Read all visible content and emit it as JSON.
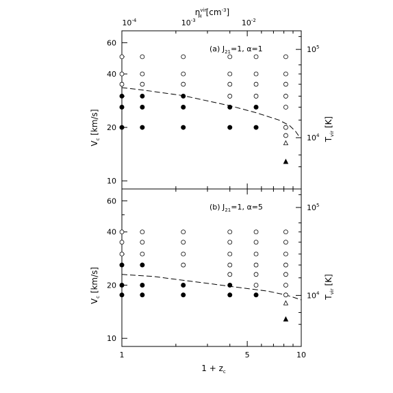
{
  "chart_data": [
    {
      "type": "scatter",
      "panel": "a",
      "annotation": {
        "main": "(a) J",
        "sub": "21",
        "rest": "=1, α=1"
      },
      "x_log": true,
      "y_log": true,
      "xlim": [
        1,
        10
      ],
      "ylim": [
        9,
        70
      ],
      "ylabel": {
        "main": "V",
        "sub": "c",
        "rest": " [km/s]"
      },
      "yticks": [
        10,
        20,
        40,
        60
      ],
      "yticklabels": [
        "10",
        "20",
        "40",
        "60"
      ],
      "right_label": {
        "main": "T",
        "sub": "vir",
        "rest": " [K]"
      },
      "right_ticks": [
        {
          "text": "10",
          "sup": "4",
          "vc": 17.5
        },
        {
          "text": "10",
          "sup": "5",
          "vc": 55
        }
      ],
      "top_label": {
        "main": "n",
        "sup": "vir",
        "sub": "H",
        "rest": "[cm",
        "sup2": "-3",
        "rest2": "]"
      },
      "top_ticks": [
        {
          "text": "10",
          "sup": "-4",
          "z1": 1.1
        },
        {
          "text": "10",
          "sup": "-3",
          "z1": 2.35
        },
        {
          "text": "10",
          "sup": "-2",
          "z1": 5.1
        }
      ],
      "series": [
        {
          "marker": "open-circle",
          "points": [
            [
              1,
              50
            ],
            [
              1.3,
              50
            ],
            [
              2.2,
              50
            ],
            [
              4,
              50
            ],
            [
              5.6,
              50
            ],
            [
              8.2,
              50
            ],
            [
              1,
              40
            ],
            [
              1.3,
              40
            ],
            [
              2.2,
              40
            ],
            [
              4,
              40
            ],
            [
              5.6,
              40
            ],
            [
              8.2,
              40
            ],
            [
              1,
              35
            ],
            [
              1.3,
              35
            ],
            [
              2.2,
              35
            ],
            [
              4,
              35
            ],
            [
              5.6,
              35
            ],
            [
              8.2,
              35
            ],
            [
              4,
              30
            ],
            [
              5.6,
              30
            ],
            [
              8.2,
              30
            ],
            [
              8.2,
              26
            ],
            [
              8.2,
              20
            ],
            [
              8.2,
              18
            ]
          ]
        },
        {
          "marker": "filled-circle",
          "points": [
            [
              1,
              30
            ],
            [
              1.3,
              30
            ],
            [
              2.2,
              30
            ],
            [
              1,
              26
            ],
            [
              1.3,
              26
            ],
            [
              2.2,
              26
            ],
            [
              4,
              26
            ],
            [
              5.6,
              26
            ],
            [
              1,
              20
            ],
            [
              1.3,
              20
            ],
            [
              2.2,
              20
            ],
            [
              4,
              20
            ],
            [
              5.6,
              20
            ]
          ]
        },
        {
          "marker": "open-triangle",
          "points": [
            [
              8.2,
              16.3
            ]
          ]
        },
        {
          "marker": "filled-triangle",
          "points": [
            [
              8.2,
              12.8
            ]
          ]
        }
      ],
      "line": {
        "style": "dashed",
        "points": [
          [
            1,
            33.5
          ],
          [
            1.3,
            32.5
          ],
          [
            2.2,
            30.2
          ],
          [
            4,
            26.5
          ],
          [
            5.6,
            24.2
          ],
          [
            7.5,
            22
          ],
          [
            8.6,
            20.5
          ],
          [
            9.3,
            19
          ],
          [
            9.8,
            17.6
          ]
        ]
      }
    },
    {
      "type": "scatter",
      "panel": "b",
      "annotation": {
        "main": "(b) J",
        "sub": "21",
        "rest": "=1, α=5"
      },
      "x_log": true,
      "y_log": true,
      "xlim": [
        1,
        10
      ],
      "ylim": [
        9,
        70
      ],
      "xlabel": {
        "main": "1 + z",
        "sub": "c",
        "rest": ""
      },
      "xticks": [
        1,
        5,
        10
      ],
      "xticklabels": [
        "1",
        "5",
        "10"
      ],
      "ylabel": {
        "main": "V",
        "sub": "c",
        "rest": " [km/s]"
      },
      "yticks": [
        10,
        20,
        40,
        60
      ],
      "yticklabels": [
        "10",
        "20",
        "40",
        "60"
      ],
      "right_label": {
        "main": "T",
        "sub": "vir",
        "rest": " [K]"
      },
      "right_ticks": [
        {
          "text": "10",
          "sup": "4",
          "vc": 17.5
        },
        {
          "text": "10",
          "sup": "5",
          "vc": 55
        }
      ],
      "series": [
        {
          "marker": "open-circle",
          "points": [
            [
              1,
              40
            ],
            [
              1.3,
              40
            ],
            [
              2.2,
              40
            ],
            [
              4,
              40
            ],
            [
              5.6,
              40
            ],
            [
              8.2,
              40
            ],
            [
              1,
              35
            ],
            [
              1.3,
              35
            ],
            [
              2.2,
              35
            ],
            [
              4,
              35
            ],
            [
              5.6,
              35
            ],
            [
              8.2,
              35
            ],
            [
              1,
              30
            ],
            [
              1.3,
              30
            ],
            [
              2.2,
              30
            ],
            [
              4,
              30
            ],
            [
              5.6,
              30
            ],
            [
              8.2,
              30
            ],
            [
              2.2,
              26
            ],
            [
              4,
              26
            ],
            [
              5.6,
              26
            ],
            [
              8.2,
              26
            ],
            [
              4,
              23
            ],
            [
              5.6,
              23
            ],
            [
              8.2,
              23
            ],
            [
              5.6,
              20
            ],
            [
              8.2,
              20
            ],
            [
              8.2,
              17.6
            ]
          ]
        },
        {
          "marker": "filled-circle",
          "points": [
            [
              1,
              26
            ],
            [
              1.3,
              26
            ],
            [
              1,
              20
            ],
            [
              1.3,
              20
            ],
            [
              2.2,
              20
            ],
            [
              4,
              20
            ],
            [
              1,
              17.6
            ],
            [
              1.3,
              17.6
            ],
            [
              2.2,
              17.6
            ],
            [
              4,
              17.6
            ],
            [
              5.6,
              17.6
            ]
          ]
        },
        {
          "marker": "open-triangle",
          "points": [
            [
              8.2,
              15.8
            ]
          ]
        },
        {
          "marker": "filled-triangle",
          "points": [
            [
              8.2,
              12.8
            ]
          ]
        }
      ],
      "line": {
        "style": "dashed",
        "points": [
          [
            1,
            23
          ],
          [
            1.5,
            22.4
          ],
          [
            2.2,
            21.3
          ],
          [
            3.2,
            20.3
          ],
          [
            4.5,
            19.4
          ],
          [
            6.5,
            18.5
          ],
          [
            8.2,
            17.6
          ],
          [
            9,
            17.1
          ],
          [
            10,
            16.5
          ]
        ]
      }
    }
  ]
}
